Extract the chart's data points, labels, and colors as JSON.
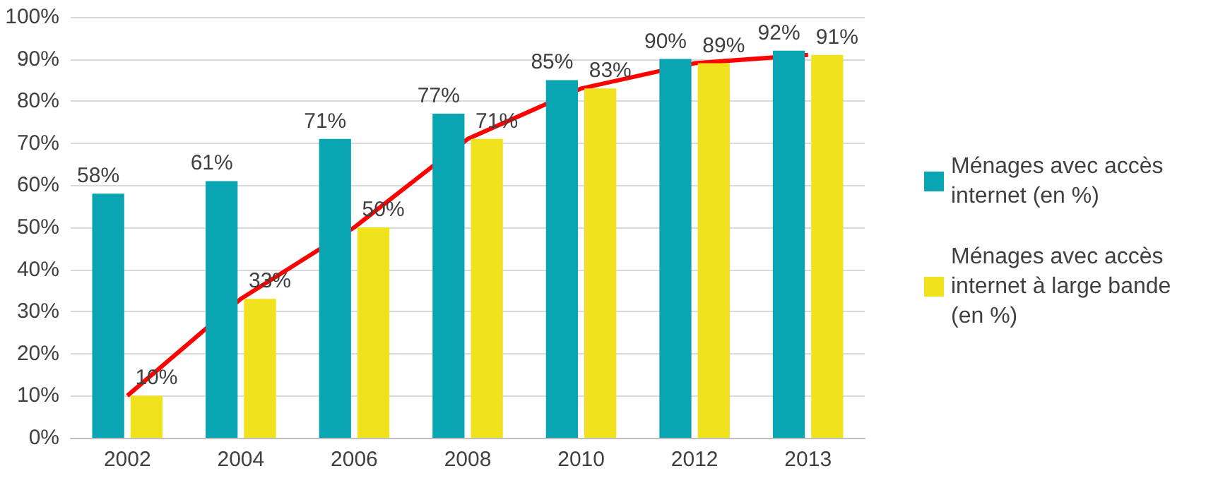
{
  "chart_data": {
    "type": "bar",
    "categories": [
      "2002",
      "2004",
      "2006",
      "2008",
      "2010",
      "2012",
      "2013"
    ],
    "series": [
      {
        "name": "Ménages avec accès internet (en %)",
        "color": "#0aa5b2",
        "values": [
          58,
          61,
          71,
          77,
          85,
          90,
          92
        ],
        "value_labels": [
          "58%",
          "61%",
          "71%",
          "77%",
          "85%",
          "90%",
          "92%"
        ]
      },
      {
        "name": "Ménages avec accès internet à large bande (en %)",
        "color": "#f0e21c",
        "values": [
          10,
          33,
          50,
          71,
          83,
          89,
          91
        ],
        "value_labels": [
          "10%",
          "33%",
          "50%",
          "71%",
          "83%",
          "89%",
          "91%"
        ]
      },
      {
        "type": "line",
        "color": "#ff0000",
        "values": [
          10,
          33,
          50,
          71,
          83,
          89,
          91
        ]
      }
    ],
    "ylim": [
      0,
      100
    ],
    "yticks": [
      {
        "value": 0,
        "label": "0%"
      },
      {
        "value": 10,
        "label": "10%"
      },
      {
        "value": 20,
        "label": "20%"
      },
      {
        "value": 30,
        "label": "30%"
      },
      {
        "value": 40,
        "label": "40%"
      },
      {
        "value": 50,
        "label": "50%"
      },
      {
        "value": 60,
        "label": "60%"
      },
      {
        "value": 70,
        "label": "70%"
      },
      {
        "value": 80,
        "label": "80%"
      },
      {
        "value": 90,
        "label": "90%"
      },
      {
        "value": 100,
        "label": "100%"
      }
    ],
    "grid": "y",
    "legend": "right",
    "marker": "none"
  }
}
